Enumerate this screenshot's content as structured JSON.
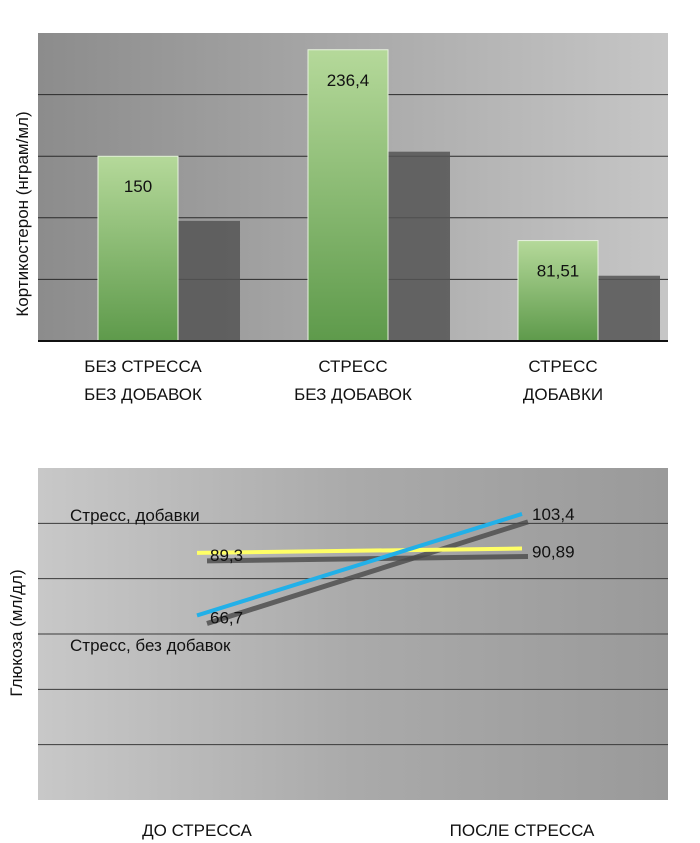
{
  "chart_data": [
    {
      "type": "bar",
      "ylabel": "Кортикостерон (нграм/мл)",
      "categories": [
        [
          "БЕЗ СТРЕССА",
          "БЕЗ ДОБАВОК"
        ],
        [
          "СТРЕСС",
          "БЕЗ ДОБАВОК"
        ],
        [
          "СТРЕСС",
          "ДОБАВКИ"
        ]
      ],
      "values": [
        150,
        236.4,
        81.51
      ],
      "value_labels": [
        "150",
        "236,4",
        "81,51"
      ],
      "ylim": [
        0,
        250
      ],
      "grid": true,
      "colors": {
        "bar_top": "#a9d18e",
        "bar_bottom": "#5f9a4d",
        "shadow": "#555555",
        "plot_bg": "#a8a8a8"
      }
    },
    {
      "type": "line",
      "ylabel": "Глюкоза (мл/дл)",
      "x": [
        "ДО СТРЕССА",
        "ПОСЛЕ СТРЕССА"
      ],
      "ylim": [
        0,
        120
      ],
      "grid": true,
      "series": [
        {
          "name": "Стресс, добавки",
          "values": [
            89.3,
            90.89
          ],
          "value_labels": [
            "89,3",
            "90,89"
          ],
          "color": "#ffff66"
        },
        {
          "name": "Стресс, без добавок",
          "values": [
            66.7,
            103.4
          ],
          "value_labels": [
            "66,7",
            "103,4"
          ],
          "color": "#22b0e8"
        }
      ]
    }
  ]
}
